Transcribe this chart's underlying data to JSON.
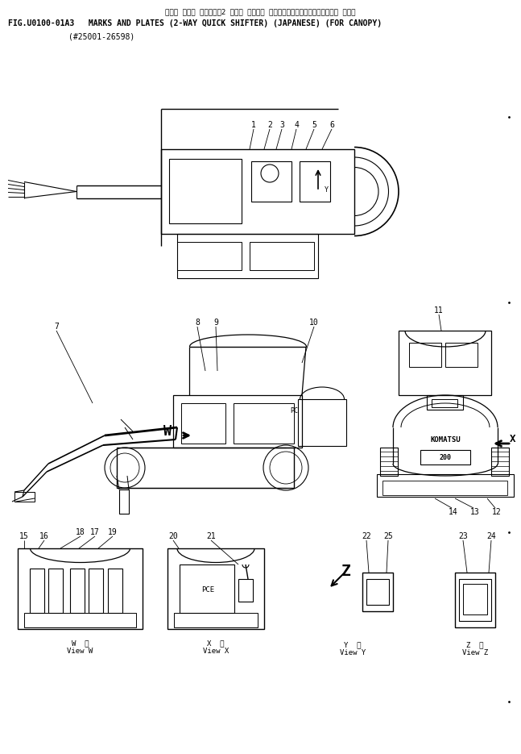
{
  "title_japanese": "マーク および プレート（2 ウェイ クイック シフタ）（ニホンゴ）（キャノピー ヨウ）",
  "title_line1": "FIG.U0100-01A3   MARKS AND PLATES (2-WAY QUICK SHIFTER) (JAPANESE) (FOR CANOPY)",
  "title_line2": "(#25001-26598)",
  "bg_color": "#ffffff",
  "lc": "#000000",
  "fig_width": 6.47,
  "fig_height": 9.35,
  "dpi": 100
}
